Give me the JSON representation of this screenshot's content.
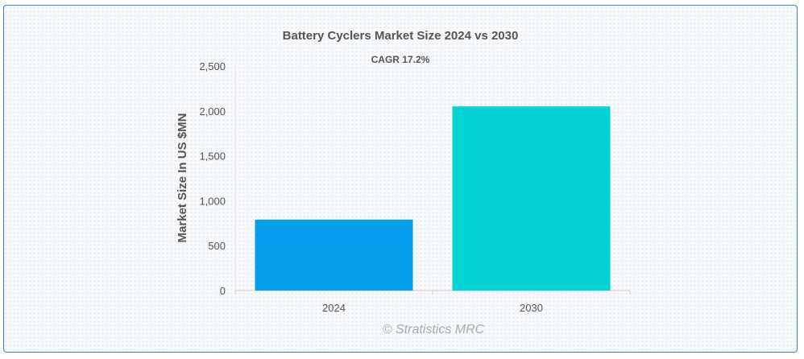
{
  "chart_data": {
    "type": "bar",
    "title": "Battery Cyclers Market Size 2024 vs 2030",
    "subtitle": "CAGR 17.2%",
    "xlabel": "",
    "ylabel": "Market Size In US $MN",
    "categories": [
      "2024",
      "2030"
    ],
    "values": [
      790,
      2050
    ],
    "colors": [
      "#069fee",
      "#03d3d3"
    ],
    "ylim": [
      0,
      2500
    ],
    "yticks": [
      0,
      500,
      1000,
      1500,
      2000,
      2500
    ],
    "ytick_labels": [
      "0",
      "500",
      "1,000",
      "1,500",
      "2,000",
      "2,500"
    ],
    "grid": false,
    "legend": "none"
  },
  "watermark": "© Stratistics MRC"
}
